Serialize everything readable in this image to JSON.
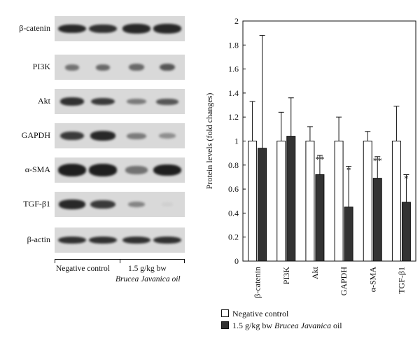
{
  "blot": {
    "rows": [
      {
        "label": "β-catenin"
      },
      {
        "label": "PI3K"
      },
      {
        "label": "Akt"
      },
      {
        "label": "GAPDH"
      },
      {
        "label": "α-SMA"
      },
      {
        "label": "TGF-β1"
      },
      {
        "label": "β-actin"
      }
    ],
    "group_negative": "Negative control",
    "group_treated_line1": "1.5 g/kg bw",
    "group_treated_line2": "Brucea Javanica oil"
  },
  "legend": {
    "negative": "Negative control",
    "treated_prefix": "1.5 g/kg bw ",
    "treated_italic": "Brucea Javanica",
    "treated_suffix": " oil"
  },
  "chart_data": {
    "type": "bar",
    "ylabel": "Protein levels (fold changes)",
    "ylim": [
      0,
      2
    ],
    "yticks": [
      "0",
      "0.2",
      "0.4",
      "0.6",
      "0.8",
      "1",
      "1.2",
      "1.4",
      "1.6",
      "1.8",
      "2"
    ],
    "categories": [
      "β-catenin",
      "PI3K",
      "Akt",
      "GAPDH",
      "α-SMA",
      "TGF-β1"
    ],
    "series": [
      {
        "name": "Negative control",
        "color": "#ffffff",
        "values": [
          1,
          1,
          1,
          1,
          1,
          1
        ],
        "errors": [
          0.33,
          0.24,
          0.12,
          0.2,
          0.08,
          0.29
        ]
      },
      {
        "name": "1.5 g/kg bw Brucea Javanica oil",
        "color": "#333333",
        "values": [
          0.94,
          1.04,
          0.72,
          0.45,
          0.69,
          0.49
        ],
        "errors": [
          0.94,
          0.32,
          0.16,
          0.34,
          0.18,
          0.23
        ]
      }
    ],
    "significance": [
      "",
      "",
      "**",
      "*",
      "**",
      "*"
    ],
    "legend_position": "bottom-left"
  }
}
